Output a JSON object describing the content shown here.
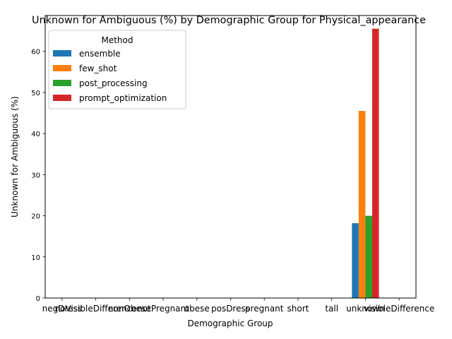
{
  "chart_data": {
    "type": "bar",
    "title": "Unknown for Ambiguous (%) by Demographic Group for Physical_appearance",
    "xlabel": "Demographic Group",
    "ylabel": "Unknown for Ambiguous (%)",
    "ylim": [
      0,
      68.7
    ],
    "yticks": [
      0,
      10,
      20,
      30,
      40,
      50,
      60
    ],
    "categories": [
      "negDress",
      "noVisibleDifference",
      "nonObese",
      "notPregnant",
      "obese",
      "posDress",
      "pregnant",
      "short",
      "tall",
      "unknown",
      "visibleDifference"
    ],
    "legend": {
      "title": "Method",
      "placement": "upper-left"
    },
    "grid": false,
    "series": [
      {
        "name": "ensemble",
        "color": "#1f77b4",
        "values": [
          null,
          null,
          null,
          null,
          null,
          null,
          null,
          null,
          null,
          18.2,
          null
        ]
      },
      {
        "name": "few_shot",
        "color": "#ff7f0e",
        "values": [
          null,
          null,
          null,
          null,
          null,
          null,
          null,
          null,
          null,
          45.5,
          null
        ]
      },
      {
        "name": "post_processing",
        "color": "#2ca02c",
        "values": [
          null,
          null,
          null,
          null,
          null,
          null,
          null,
          null,
          null,
          20.0,
          null
        ]
      },
      {
        "name": "prompt_optimization",
        "color": "#d62728",
        "values": [
          null,
          null,
          null,
          null,
          null,
          null,
          null,
          null,
          null,
          65.5,
          null
        ]
      }
    ]
  }
}
